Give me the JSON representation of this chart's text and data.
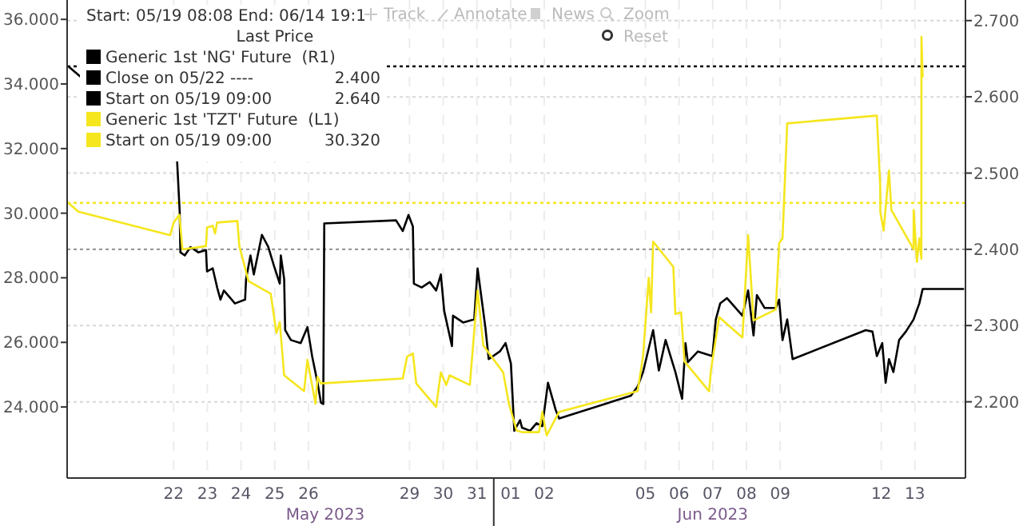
{
  "chart_data": {
    "type": "line",
    "title": "Start: 05/19 08:08 End: 06/14 19:1",
    "legend_title": "Last Price",
    "xlim": [
      "2023-05-19T08:08",
      "2023-06-14T23:59"
    ],
    "xticks": [
      {
        "value": "2023-05-22T12:00",
        "label": "22"
      },
      {
        "value": "2023-05-23T12:00",
        "label": "23"
      },
      {
        "value": "2023-05-24T12:00",
        "label": "24"
      },
      {
        "value": "2023-05-25T12:00",
        "label": "25"
      },
      {
        "value": "2023-05-26T12:00",
        "label": "26"
      },
      {
        "value": "2023-05-29T12:00",
        "label": "29"
      },
      {
        "value": "2023-05-30T12:00",
        "label": "30"
      },
      {
        "value": "2023-05-31T12:00",
        "label": "31"
      },
      {
        "value": "2023-06-01T12:00",
        "label": "01"
      },
      {
        "value": "2023-06-02T12:00",
        "label": "02"
      },
      {
        "value": "2023-06-05T12:00",
        "label": "05"
      },
      {
        "value": "2023-06-06T12:00",
        "label": "06"
      },
      {
        "value": "2023-06-07T12:00",
        "label": "07"
      },
      {
        "value": "2023-06-08T12:00",
        "label": "08"
      },
      {
        "value": "2023-06-09T12:00",
        "label": "09"
      },
      {
        "value": "2023-06-12T12:00",
        "label": "12"
      },
      {
        "value": "2023-06-13T12:00",
        "label": "13"
      }
    ],
    "ylim": [
      21.8,
      36.6
    ],
    "yticks": [
      {
        "value": 24,
        "label": "24.000"
      },
      {
        "value": 26,
        "label": "26.000"
      },
      {
        "value": 28,
        "label": "28.000"
      },
      {
        "value": 30,
        "label": "30.000"
      },
      {
        "value": 32,
        "label": "32.000"
      },
      {
        "value": 34,
        "label": "34.000"
      },
      {
        "value": 36,
        "label": "36.000"
      }
    ],
    "y2lim": [
      2.1,
      2.727
    ],
    "y2ticks": [
      {
        "value": 2.2,
        "label": "2.200"
      },
      {
        "value": 2.3,
        "label": "2.300"
      },
      {
        "value": 2.4,
        "label": "2.400"
      },
      {
        "value": 2.5,
        "label": "2.500"
      },
      {
        "value": 2.6,
        "label": "2.600"
      },
      {
        "value": 2.7,
        "label": "2.700"
      }
    ],
    "grid": true,
    "legend": "top left",
    "series": [
      {
        "name": "Generic 1st 'NG' Future  (R1)",
        "color": "#000000",
        "axis": "y2",
        "x": [
          "2023-05-19T09:00",
          "2023-05-22T02:24",
          "2023-05-22T14:24",
          "2023-05-22T16:19",
          "2023-05-22T16:48",
          "2023-05-22T19:55",
          "2023-05-23T00:00",
          "2023-05-23T05:31",
          "2023-05-23T11:02",
          "2023-05-23T11:46",
          "2023-05-23T15:50",
          "2023-05-23T18:58",
          "2023-05-23T21:22",
          "2023-05-23T23:46",
          "2023-05-24T07:41",
          "2023-05-24T14:53",
          "2023-05-24T15:36",
          "2023-05-24T18:43",
          "2023-05-24T21:07",
          "2023-05-25T02:53",
          "2023-05-25T07:26",
          "2023-05-25T11:31",
          "2023-05-25T15:36",
          "2023-05-25T16:19",
          "2023-05-25T18:43",
          "2023-05-25T19:26",
          "2023-05-25T23:31",
          "2023-05-26T06:29",
          "2023-05-26T11:17",
          "2023-05-26T14:38",
          "2023-05-26T18:29",
          "2023-05-26T20:53",
          "2023-05-26T22:34",
          "2023-05-26T23:17",
          "2023-05-29T02:24",
          "2023-05-29T07:12",
          "2023-05-29T11:17",
          "2023-05-29T14:24",
          "2023-05-29T15:07",
          "2023-05-29T20:38",
          "2023-05-30T02:24",
          "2023-05-30T06:58",
          "2023-05-30T10:19",
          "2023-05-30T12:43",
          "2023-05-30T18:14",
          "2023-05-30T18:58",
          "2023-05-31T02:10",
          "2023-05-31T10:05",
          "2023-05-31T12:29",
          "2023-05-31T18:00",
          "2023-05-31T20:24",
          "2023-06-01T04:19",
          "2023-06-01T08:24",
          "2023-06-01T12:14",
          "2023-06-01T14:38",
          "2023-06-01T18:43",
          "2023-06-01T20:10",
          "2023-06-02T01:55",
          "2023-06-02T06:29",
          "2023-06-02T10:34",
          "2023-06-02T14:38",
          "2023-06-02T20:10",
          "2023-06-02T22:34",
          "2023-06-05T01:41",
          "2023-06-05T06:29",
          "2023-06-05T10:19",
          "2023-06-05T17:31",
          "2023-06-05T21:36",
          "2023-06-06T02:24",
          "2023-06-06T09:22",
          "2023-06-06T14:10",
          "2023-06-06T16:34",
          "2023-06-06T18:14",
          "2023-06-07T01:26",
          "2023-06-07T11:46",
          "2023-06-07T14:10",
          "2023-06-07T17:17",
          "2023-06-07T22:05",
          "2023-06-08T09:07",
          "2023-06-08T13:12",
          "2023-06-08T17:02",
          "2023-06-08T19:26",
          "2023-06-09T00:58",
          "2023-06-09T08:53",
          "2023-06-09T11:17",
          "2023-06-09T13:41",
          "2023-06-09T17:02",
          "2023-06-09T20:53",
          "2023-06-12T00:58",
          "2023-06-12T05:46",
          "2023-06-12T08:53",
          "2023-06-12T12:43",
          "2023-06-12T15:07",
          "2023-06-12T17:31",
          "2023-06-12T20:38",
          "2023-06-13T00:43",
          "2023-06-13T05:31",
          "2023-06-13T11:02",
          "2023-06-13T15:07",
          "2023-06-13T17:31",
          "2023-06-14T23:00"
        ],
        "values": [
          2.64,
          null,
          2.518,
          2.449,
          2.396,
          2.392,
          2.403,
          2.396,
          2.399,
          2.371,
          2.375,
          2.35,
          2.334,
          2.346,
          2.329,
          2.334,
          2.361,
          2.392,
          2.367,
          2.419,
          2.403,
          2.378,
          2.355,
          2.392,
          2.361,
          2.294,
          2.281,
          2.277,
          2.298,
          2.26,
          2.225,
          2.199,
          2.197,
          2.434,
          2.438,
          2.424,
          2.445,
          2.43,
          2.355,
          2.35,
          2.357,
          2.346,
          2.367,
          2.319,
          2.273,
          2.313,
          2.304,
          2.308,
          2.375,
          2.298,
          2.256,
          2.266,
          2.277,
          2.25,
          2.162,
          2.176,
          2.166,
          2.162,
          2.172,
          2.168,
          2.225,
          2.189,
          2.178,
          2.208,
          2.22,
          2.239,
          2.294,
          2.241,
          2.281,
          2.239,
          2.204,
          2.277,
          2.252,
          2.266,
          2.26,
          2.308,
          2.329,
          2.336,
          2.313,
          2.346,
          2.287,
          2.34,
          2.323,
          2.323,
          2.334,
          2.281,
          2.308,
          2.256,
          2.294,
          2.292,
          2.26,
          2.277,
          2.225,
          2.256,
          2.239,
          2.281,
          2.292,
          2.308,
          2.329,
          2.348,
          2.348
        ]
      },
      {
        "name": "Generic 1st 'TZT' Future  (L1)",
        "color": "#f5e61e",
        "x": [
          "2023-05-19T09:00",
          "2023-05-19T16:05",
          "2023-05-22T09:36",
          "2023-05-22T12:00",
          "2023-05-22T16:05",
          "2023-05-22T18:14",
          "2023-05-23T11:02",
          "2023-05-23T11:46",
          "2023-05-23T15:50",
          "2023-05-23T17:31",
          "2023-05-23T18:58",
          "2023-05-24T09:22",
          "2023-05-24T10:48",
          "2023-05-24T17:17",
          "2023-05-25T09:07",
          "2023-05-25T13:12",
          "2023-05-25T15:36",
          "2023-05-25T18:43",
          "2023-05-26T08:53",
          "2023-05-26T11:17",
          "2023-05-26T17:02",
          "2023-05-26T18:29",
          "2023-05-26T20:53",
          "2023-05-29T07:12",
          "2023-05-29T10:19",
          "2023-05-29T14:24",
          "2023-05-29T16:48",
          "2023-05-30T06:58",
          "2023-05-30T10:19",
          "2023-05-30T14:10",
          "2023-05-30T16:34",
          "2023-05-31T06:58",
          "2023-05-31T12:29",
          "2023-05-31T16:34",
          "2023-06-01T06:43",
          "2023-06-01T10:48",
          "2023-06-01T16:19",
          "2023-06-01T20:10",
          "2023-06-02T08:10",
          "2023-06-02T10:34",
          "2023-06-02T13:41",
          "2023-06-02T22:34",
          "2023-06-05T06:29",
          "2023-06-05T10:19",
          "2023-06-05T14:24",
          "2023-06-05T16:05",
          "2023-06-05T17:31",
          "2023-06-06T07:55",
          "2023-06-06T09:22",
          "2023-06-06T13:26",
          "2023-06-06T15:50",
          "2023-06-07T09:22",
          "2023-06-07T10:48",
          "2023-06-07T16:34",
          "2023-06-08T09:07",
          "2023-06-08T13:12",
          "2023-06-08T17:02",
          "2023-06-09T08:53",
          "2023-06-09T11:17",
          "2023-06-09T13:41",
          "2023-06-09T17:02",
          "2023-06-12T08:53",
          "2023-06-12T11:17",
          "2023-06-12T11:20",
          "2023-06-12T13:41",
          "2023-06-12T17:31",
          "2023-06-12T19:12",
          "2023-06-13T11:02",
          "2023-06-13T11:05",
          "2023-06-13T13:26",
          "2023-06-13T15:07",
          "2023-06-13T16:34",
          "2023-06-13T16:38",
          "2023-06-13T17:31"
        ],
        "values": [
          30.32,
          30.05,
          29.32,
          29.71,
          29.95,
          28.88,
          28.98,
          29.56,
          29.61,
          29.37,
          29.71,
          29.76,
          28.98,
          27.9,
          27.51,
          26.29,
          26.63,
          24.98,
          24.49,
          25.46,
          24.1,
          24.93,
          24.73,
          24.88,
          25.56,
          25.66,
          24.73,
          24,
          25.07,
          24.68,
          24.98,
          24.68,
          27.61,
          25.9,
          25.07,
          24.1,
          23.27,
          23.22,
          23.22,
          23.85,
          23.12,
          23.85,
          24.49,
          25.56,
          28,
          26.93,
          29.12,
          28.34,
          26.88,
          26.93,
          25.41,
          24.49,
          25.17,
          26.78,
          26.15,
          29.32,
          26.68,
          27.02,
          29.07,
          29.22,
          32.78,
          33.02,
          30.83,
          30.05,
          29.46,
          31.32,
          30.1,
          28.88,
          30.1,
          28.49,
          29.22,
          28.59,
          35.46,
          34.2
        ]
      }
    ],
    "ref_lines": [
      {
        "axis": "y2",
        "value": 2.4,
        "label": "Close on 05/22 ---- 2.400",
        "color": "#9a9a9a",
        "line_style": "dotted"
      },
      {
        "axis": "y2",
        "value": 2.64,
        "label": "Start on 05/19 09:00 2.640",
        "color": "#000000",
        "line_style": "dotted"
      },
      {
        "axis": "y",
        "value": 30.32,
        "label": "Start on 05/19 09:00 30.320",
        "color": "#f5e61e",
        "line_style": "dotted"
      }
    ],
    "annotations": [
      "May 2023",
      "Jun 2023",
      "Track",
      "Annotate",
      "News",
      "Zoom",
      "Reset"
    ]
  }
}
